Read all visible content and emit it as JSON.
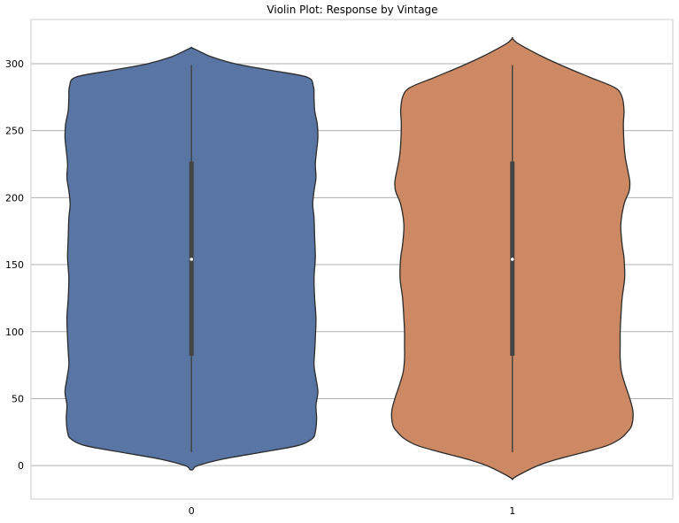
{
  "chart_data": {
    "type": "violin",
    "title": "Violin Plot: Response by Vintage",
    "xlabel": "",
    "ylabel": "",
    "categories": [
      "0",
      "1"
    ],
    "ylim": [
      -25,
      333
    ],
    "yticks": [
      0,
      50,
      100,
      150,
      200,
      250,
      300
    ],
    "grid": "horizontal",
    "series": [
      {
        "category": "0",
        "color": "#5975a4",
        "range": [
          10,
          299
        ],
        "quartiles": [
          82,
          154,
          227
        ],
        "median": 154,
        "density_extent": [
          -3,
          312
        ],
        "density_profile": [
          [
            -3,
            0.01
          ],
          [
            0,
            0.05
          ],
          [
            5,
            0.25
          ],
          [
            10,
            0.55
          ],
          [
            15,
            0.83
          ],
          [
            20,
            0.94
          ],
          [
            25,
            0.965
          ],
          [
            35,
            0.975
          ],
          [
            45,
            0.97
          ],
          [
            55,
            0.985
          ],
          [
            65,
            0.97
          ],
          [
            75,
            0.955
          ],
          [
            85,
            0.96
          ],
          [
            95,
            0.965
          ],
          [
            110,
            0.97
          ],
          [
            125,
            0.96
          ],
          [
            140,
            0.955
          ],
          [
            155,
            0.965
          ],
          [
            170,
            0.96
          ],
          [
            185,
            0.955
          ],
          [
            195,
            0.945
          ],
          [
            205,
            0.955
          ],
          [
            215,
            0.97
          ],
          [
            225,
            0.965
          ],
          [
            235,
            0.975
          ],
          [
            245,
            0.985
          ],
          [
            255,
            0.98
          ],
          [
            265,
            0.96
          ],
          [
            275,
            0.955
          ],
          [
            283,
            0.95
          ],
          [
            290,
            0.9
          ],
          [
            295,
            0.62
          ],
          [
            300,
            0.34
          ],
          [
            305,
            0.16
          ],
          [
            310,
            0.045
          ],
          [
            312,
            0.0
          ]
        ]
      },
      {
        "category": "1",
        "color": "#cc8963",
        "range": [
          10,
          299
        ],
        "quartiles": [
          82,
          154,
          227
        ],
        "median": 154,
        "density_extent": [
          -10,
          319
        ],
        "density_profile": [
          [
            -10,
            0.0
          ],
          [
            -7,
            0.05
          ],
          [
            0,
            0.2
          ],
          [
            5,
            0.36
          ],
          [
            10,
            0.56
          ],
          [
            15,
            0.74
          ],
          [
            20,
            0.84
          ],
          [
            25,
            0.895
          ],
          [
            30,
            0.93
          ],
          [
            40,
            0.94
          ],
          [
            50,
            0.915
          ],
          [
            60,
            0.88
          ],
          [
            70,
            0.85
          ],
          [
            80,
            0.84
          ],
          [
            90,
            0.84
          ],
          [
            100,
            0.84
          ],
          [
            110,
            0.845
          ],
          [
            125,
            0.855
          ],
          [
            140,
            0.875
          ],
          [
            155,
            0.87
          ],
          [
            165,
            0.855
          ],
          [
            180,
            0.845
          ],
          [
            195,
            0.87
          ],
          [
            205,
            0.91
          ],
          [
            212,
            0.915
          ],
          [
            220,
            0.9
          ],
          [
            230,
            0.88
          ],
          [
            240,
            0.87
          ],
          [
            255,
            0.865
          ],
          [
            265,
            0.87
          ],
          [
            275,
            0.855
          ],
          [
            282,
            0.8
          ],
          [
            290,
            0.6
          ],
          [
            298,
            0.4
          ],
          [
            305,
            0.24
          ],
          [
            312,
            0.1
          ],
          [
            316,
            0.03
          ],
          [
            319,
            0.0
          ]
        ]
      }
    ]
  }
}
